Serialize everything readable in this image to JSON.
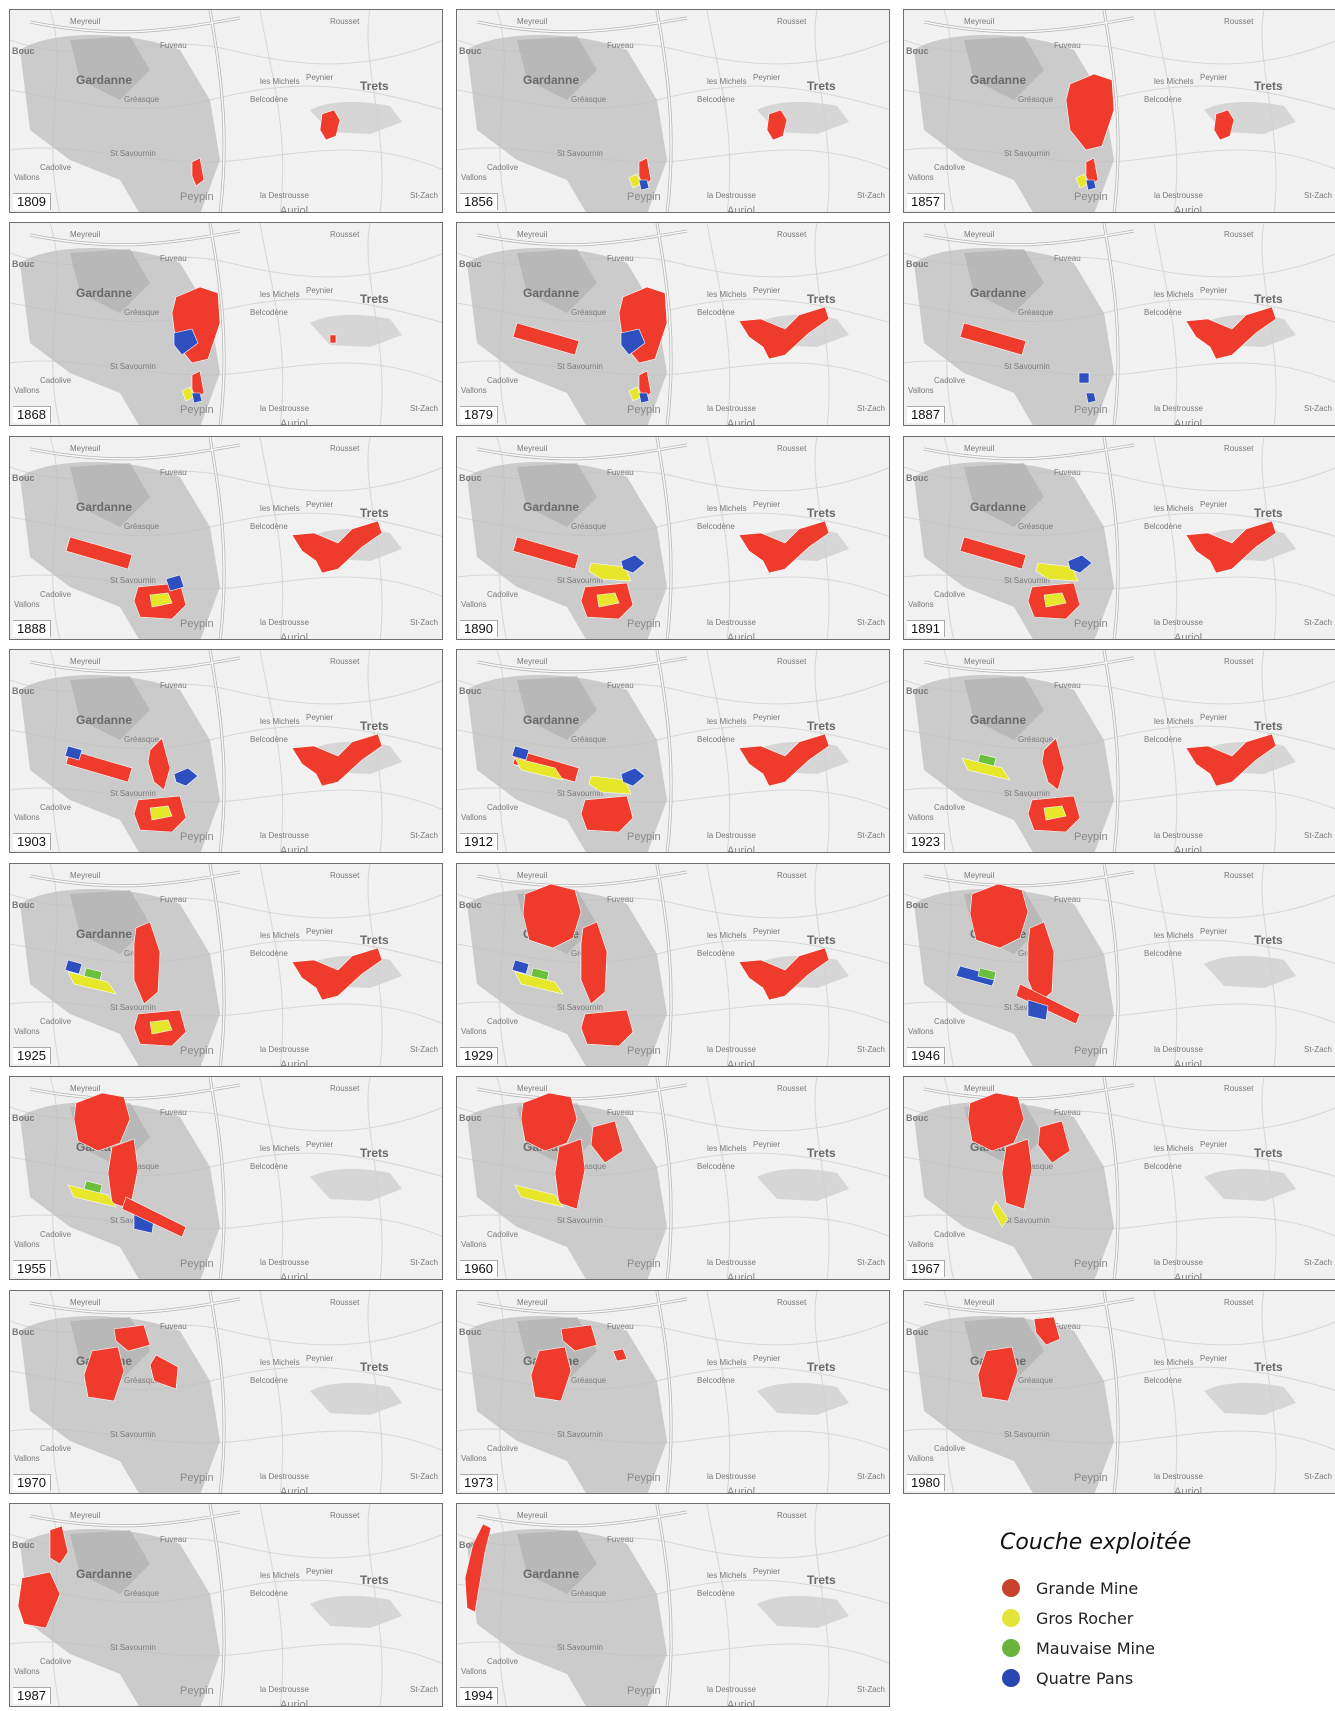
{
  "map": {
    "place_labels": {
      "gardanne": "Gardanne",
      "trets": "Trets",
      "peypin": "Peypin",
      "auriol": "Auriol",
      "belcodene": "Belcodène",
      "st_savournin": "St Savournin",
      "gréasque": "Gréasque",
      "meyreuil": "Meyreuil",
      "peynier": "Peynier",
      "les_michels": "les Michels",
      "rousset": "Rousset",
      "st_zacharie": "St-Zach",
      "la_destrousse": "la Destrousse",
      "vallons": "Vallons",
      "bouc": "Bouc",
      "cadolive": "Cadolive",
      "fuveau": "Fuveau"
    },
    "colors": {
      "grande_mine": "#ef3b2c",
      "gros_rocher": "#e6e62a",
      "mauvaise_mine": "#6cbf3c",
      "quatre_pans": "#2e4fbf"
    },
    "panels": [
      {
        "year": "1809",
        "seams": [
          {
            "s": "grande_mine",
            "p": "trets_small"
          },
          {
            "s": "grande_mine",
            "p": "peypin_strip"
          }
        ]
      },
      {
        "year": "1856",
        "seams": [
          {
            "s": "grande_mine",
            "p": "trets_small"
          },
          {
            "s": "grande_mine",
            "p": "peypin_strip"
          },
          {
            "s": "gros_rocher",
            "p": "peypin_dot"
          },
          {
            "s": "quatre_pans",
            "p": "peypin_dot2"
          }
        ]
      },
      {
        "year": "1857",
        "seams": [
          {
            "s": "grande_mine",
            "p": "trets_small"
          },
          {
            "s": "grande_mine",
            "p": "gardanne_blob"
          },
          {
            "s": "grande_mine",
            "p": "peypin_strip"
          },
          {
            "s": "gros_rocher",
            "p": "peypin_dot"
          },
          {
            "s": "quatre_pans",
            "p": "peypin_dot2"
          }
        ]
      },
      {
        "year": "1868",
        "seams": [
          {
            "s": "grande_mine",
            "p": "trets_dot"
          },
          {
            "s": "grande_mine",
            "p": "gardanne_blob"
          },
          {
            "s": "quatre_pans",
            "p": "gardanne_blob_mid"
          },
          {
            "s": "grande_mine",
            "p": "peypin_strip"
          },
          {
            "s": "gros_rocher",
            "p": "peypin_dot"
          },
          {
            "s": "quatre_pans",
            "p": "peypin_dot2"
          }
        ]
      },
      {
        "year": "1879",
        "seams": [
          {
            "s": "grande_mine",
            "p": "west_band"
          },
          {
            "s": "grande_mine",
            "p": "gardanne_blob"
          },
          {
            "s": "quatre_pans",
            "p": "gardanne_blob_mid"
          },
          {
            "s": "grande_mine",
            "p": "peypin_strip"
          },
          {
            "s": "gros_rocher",
            "p": "peypin_dot"
          },
          {
            "s": "quatre_pans",
            "p": "peypin_dot2"
          },
          {
            "s": "grande_mine",
            "p": "trets_large"
          }
        ]
      },
      {
        "year": "1887",
        "seams": [
          {
            "s": "grande_mine",
            "p": "west_band"
          },
          {
            "s": "quatre_pans",
            "p": "peypin_dot2"
          },
          {
            "s": "quatre_pans",
            "p": "peypin_dot3"
          },
          {
            "s": "grande_mine",
            "p": "trets_large"
          }
        ]
      },
      {
        "year": "1888",
        "seams": [
          {
            "s": "grande_mine",
            "p": "west_band"
          },
          {
            "s": "grande_mine",
            "p": "south_cluster"
          },
          {
            "s": "gros_rocher",
            "p": "south_cluster_y"
          },
          {
            "s": "quatre_pans",
            "p": "south_cluster_b"
          },
          {
            "s": "grande_mine",
            "p": "trets_large"
          }
        ]
      },
      {
        "year": "1890",
        "seams": [
          {
            "s": "grande_mine",
            "p": "west_band"
          },
          {
            "s": "gros_rocher",
            "p": "center_yellow"
          },
          {
            "s": "quatre_pans",
            "p": "center_blue"
          },
          {
            "s": "grande_mine",
            "p": "south_cluster"
          },
          {
            "s": "gros_rocher",
            "p": "south_cluster_y"
          },
          {
            "s": "grande_mine",
            "p": "trets_large"
          }
        ]
      },
      {
        "year": "1891",
        "seams": [
          {
            "s": "grande_mine",
            "p": "west_band"
          },
          {
            "s": "gros_rocher",
            "p": "center_yellow"
          },
          {
            "s": "quatre_pans",
            "p": "center_blue"
          },
          {
            "s": "grande_mine",
            "p": "south_cluster"
          },
          {
            "s": "gros_rocher",
            "p": "south_cluster_y"
          },
          {
            "s": "grande_mine",
            "p": "trets_large"
          }
        ]
      },
      {
        "year": "1903",
        "seams": [
          {
            "s": "grande_mine",
            "p": "west_band"
          },
          {
            "s": "quatre_pans",
            "p": "west_tip"
          },
          {
            "s": "grande_mine",
            "p": "center_red"
          },
          {
            "s": "quatre_pans",
            "p": "center_blue"
          },
          {
            "s": "grande_mine",
            "p": "south_cluster"
          },
          {
            "s": "gros_rocher",
            "p": "south_cluster_y"
          },
          {
            "s": "grande_mine",
            "p": "trets_large"
          }
        ]
      },
      {
        "year": "1912",
        "seams": [
          {
            "s": "grande_mine",
            "p": "west_band"
          },
          {
            "s": "gros_rocher",
            "p": "west_yellow"
          },
          {
            "s": "quatre_pans",
            "p": "west_tip"
          },
          {
            "s": "gros_rocher",
            "p": "center_yellow"
          },
          {
            "s": "quatre_pans",
            "p": "center_blue"
          },
          {
            "s": "grande_mine",
            "p": "south_cluster"
          },
          {
            "s": "grande_mine",
            "p": "trets_large"
          }
        ]
      },
      {
        "year": "1923",
        "seams": [
          {
            "s": "gros_rocher",
            "p": "west_yellow"
          },
          {
            "s": "mauvaise_mine",
            "p": "west_green"
          },
          {
            "s": "grande_mine",
            "p": "center_red"
          },
          {
            "s": "grande_mine",
            "p": "south_cluster"
          },
          {
            "s": "gros_rocher",
            "p": "south_cluster_y"
          },
          {
            "s": "grande_mine",
            "p": "trets_large"
          }
        ]
      },
      {
        "year": "1925",
        "seams": [
          {
            "s": "gros_rocher",
            "p": "west_yellow"
          },
          {
            "s": "mauvaise_mine",
            "p": "west_green"
          },
          {
            "s": "quatre_pans",
            "p": "west_tip"
          },
          {
            "s": "grande_mine",
            "p": "center_tall"
          },
          {
            "s": "grande_mine",
            "p": "south_cluster"
          },
          {
            "s": "gros_rocher",
            "p": "south_cluster_y"
          },
          {
            "s": "grande_mine",
            "p": "trets_large"
          }
        ]
      },
      {
        "year": "1929",
        "seams": [
          {
            "s": "grande_mine",
            "p": "north_blob"
          },
          {
            "s": "gros_rocher",
            "p": "west_yellow"
          },
          {
            "s": "mauvaise_mine",
            "p": "west_green"
          },
          {
            "s": "quatre_pans",
            "p": "west_tip"
          },
          {
            "s": "grande_mine",
            "p": "center_tall"
          },
          {
            "s": "grande_mine",
            "p": "south_cluster"
          },
          {
            "s": "grande_mine",
            "p": "trets_large"
          }
        ]
      },
      {
        "year": "1946",
        "seams": [
          {
            "s": "grande_mine",
            "p": "north_blob"
          },
          {
            "s": "quatre_pans",
            "p": "west_blue"
          },
          {
            "s": "mauvaise_mine",
            "p": "west_green"
          },
          {
            "s": "grande_mine",
            "p": "center_tall"
          },
          {
            "s": "grande_mine",
            "p": "diag_red"
          },
          {
            "s": "quatre_pans",
            "p": "diag_blue"
          }
        ]
      },
      {
        "year": "1955",
        "seams": [
          {
            "s": "grande_mine",
            "p": "north_blob_w"
          },
          {
            "s": "grande_mine",
            "p": "center_mid"
          },
          {
            "s": "gros_rocher",
            "p": "west_yellow"
          },
          {
            "s": "mauvaise_mine",
            "p": "west_green"
          },
          {
            "s": "quatre_pans",
            "p": "diag_blue"
          },
          {
            "s": "grande_mine",
            "p": "diag_red"
          }
        ]
      },
      {
        "year": "1960",
        "seams": [
          {
            "s": "grande_mine",
            "p": "north_blob_w"
          },
          {
            "s": "grande_mine",
            "p": "center_mid"
          },
          {
            "s": "grande_mine",
            "p": "east_block"
          },
          {
            "s": "gros_rocher",
            "p": "west_yellow"
          }
        ]
      },
      {
        "year": "1967",
        "seams": [
          {
            "s": "grande_mine",
            "p": "north_blob_w"
          },
          {
            "s": "grande_mine",
            "p": "center_mid"
          },
          {
            "s": "grande_mine",
            "p": "east_block"
          },
          {
            "s": "gros_rocher",
            "p": "west_small_y"
          }
        ]
      },
      {
        "year": "1970",
        "seams": [
          {
            "s": "grande_mine",
            "p": "ring_west"
          },
          {
            "s": "grande_mine",
            "p": "ring_north"
          },
          {
            "s": "grande_mine",
            "p": "ring_east"
          }
        ]
      },
      {
        "year": "1973",
        "seams": [
          {
            "s": "grande_mine",
            "p": "ring_west"
          },
          {
            "s": "grande_mine",
            "p": "ring_north"
          },
          {
            "s": "grande_mine",
            "p": "tiny_east"
          }
        ]
      },
      {
        "year": "1980",
        "seams": [
          {
            "s": "grande_mine",
            "p": "ring_west"
          },
          {
            "s": "grande_mine",
            "p": "ring_north_e"
          }
        ]
      },
      {
        "year": "1987",
        "seams": [
          {
            "s": "grande_mine",
            "p": "far_west_top"
          },
          {
            "s": "grande_mine",
            "p": "far_west_low"
          }
        ]
      },
      {
        "year": "1994",
        "seams": [
          {
            "s": "grande_mine",
            "p": "edge_strip"
          }
        ]
      }
    ]
  },
  "legend": {
    "title": "Couche exploitée",
    "items": [
      {
        "label": "Grande Mine",
        "color": "#c8402e"
      },
      {
        "label": "Gros Rocher",
        "color": "#e3e43a"
      },
      {
        "label": "Mauvaise Mine",
        "color": "#6ab43e"
      },
      {
        "label": "Quatre Pans",
        "color": "#2a46b3"
      }
    ]
  }
}
